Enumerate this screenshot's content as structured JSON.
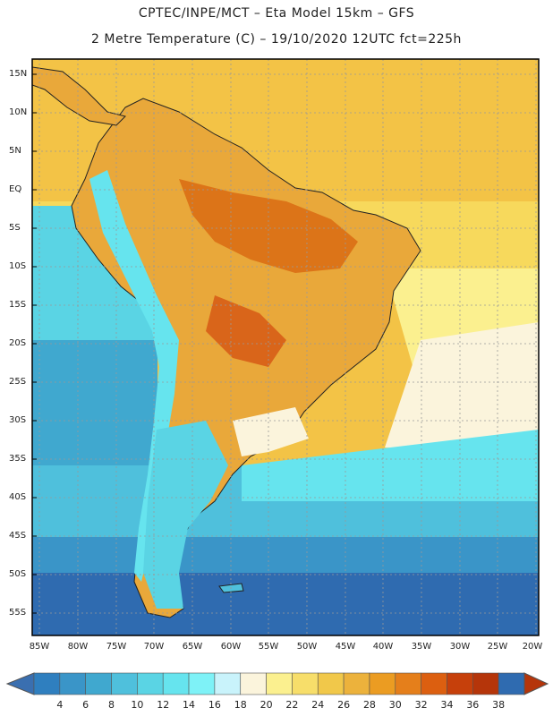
{
  "header": {
    "line1": "CPTEC/INPE/MCT –  Eta Model 15km – GFS",
    "line2": "2 Metre Temperature (C) – 19/10/2020 12UTC fct=225h"
  },
  "map": {
    "region": "South America",
    "latitude_labels": [
      "15N",
      "10N",
      "5N",
      "EQ",
      "5S",
      "10S",
      "15S",
      "20S",
      "25S",
      "30S",
      "35S",
      "40S",
      "45S",
      "50S",
      "55S"
    ],
    "longitude_labels": [
      "85W",
      "80W",
      "75W",
      "70W",
      "65W",
      "60W",
      "55W",
      "50W",
      "45W",
      "40W",
      "35W",
      "30W",
      "25W",
      "20W"
    ]
  },
  "legend": {
    "ticks": [
      "4",
      "6",
      "8",
      "10",
      "12",
      "14",
      "16",
      "18",
      "20",
      "22",
      "24",
      "26",
      "28",
      "30",
      "32",
      "34",
      "36",
      "38"
    ],
    "colors": [
      "#3a6fb0",
      "#2f7fbf",
      "#3a95c8",
      "#40a8cf",
      "#4fc0dc",
      "#5ad4e4",
      "#66e4ee",
      "#7ef2f7",
      "#c9f3fb",
      "#fbf4dc",
      "#fbf08f",
      "#f7de6a",
      "#f1c84a",
      "#ecb23c",
      "#eb9c22",
      "#e57f1b",
      "#dc5f10",
      "#c6400b",
      "#b5350a",
      "#2f6bb0"
    ]
  }
}
